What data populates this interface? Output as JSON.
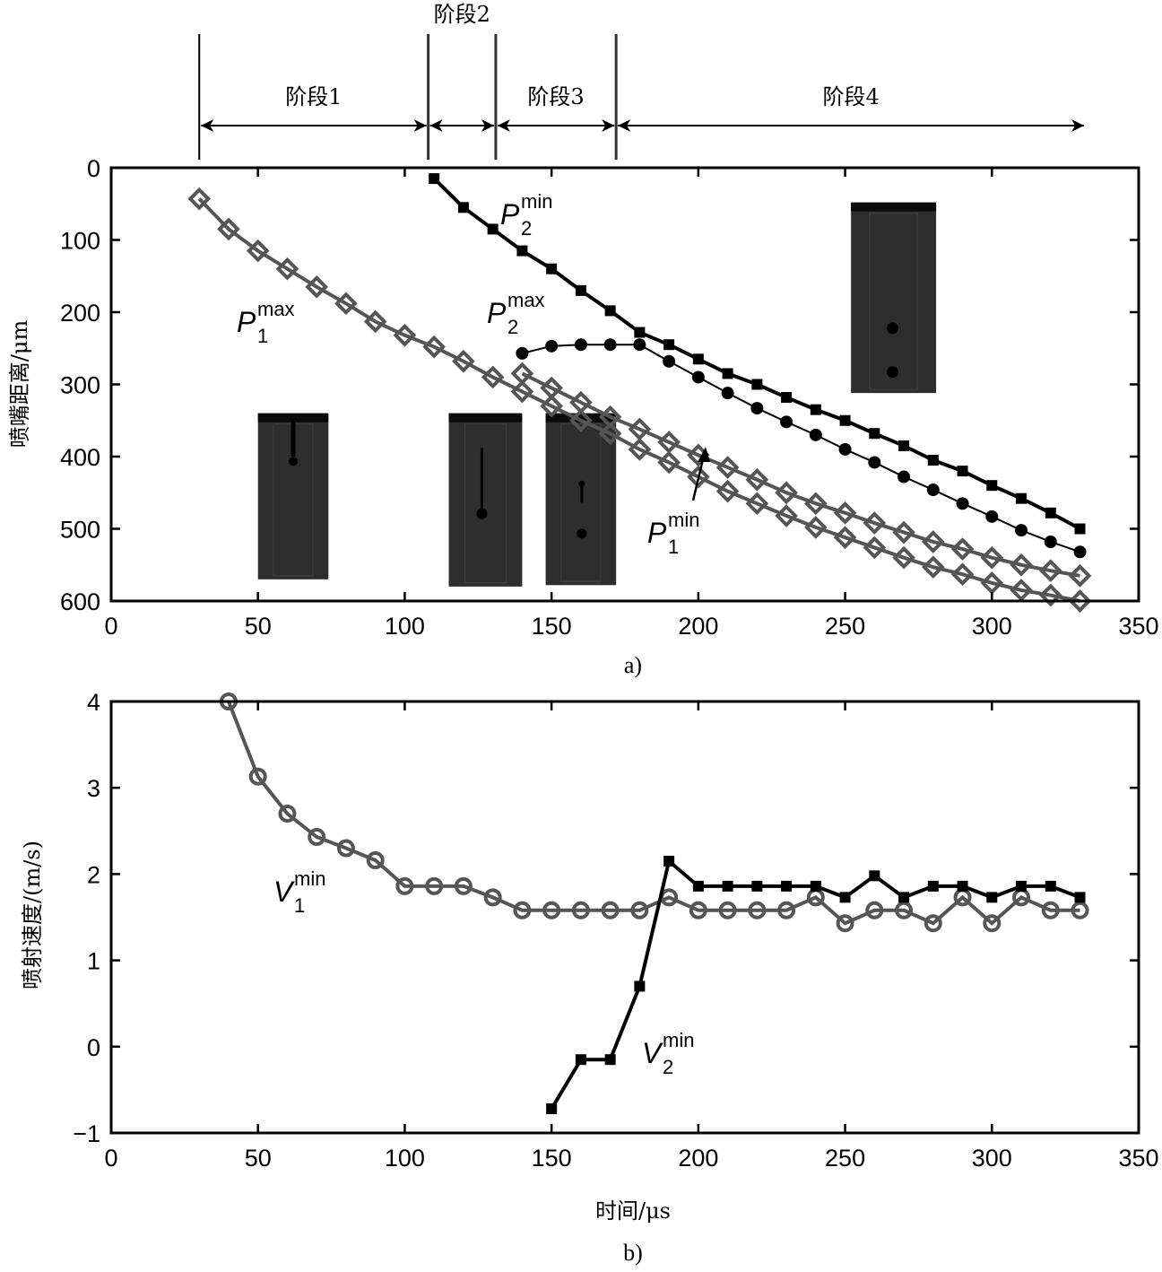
{
  "stage_header": {
    "stages": [
      {
        "label": "阶段1",
        "from": 30,
        "to": 108
      },
      {
        "label": "阶段2",
        "from": 108,
        "to": 131
      },
      {
        "label": "阶段3",
        "from": 131,
        "to": 172
      },
      {
        "label": "阶段4",
        "from": 172,
        "to": 332
      }
    ]
  },
  "chart_data": [
    {
      "id": "a",
      "type": "line",
      "caption": "a)",
      "title": "",
      "xlabel": "",
      "ylabel": "喷嘴距离/μm",
      "xlim": [
        0,
        350
      ],
      "ylim": [
        0,
        600
      ],
      "y_inverted": true,
      "x_ticks": [
        0,
        50,
        100,
        150,
        200,
        250,
        300,
        350
      ],
      "y_ticks": [
        0,
        100,
        200,
        300,
        400,
        500,
        600
      ],
      "grid": false,
      "series": [
        {
          "name": "P1max",
          "label_main": "P",
          "label_sub": "1",
          "label_sup": "max",
          "marker": "diamond-open",
          "color": "#555555",
          "x": [
            30,
            40,
            50,
            60,
            70,
            80,
            90,
            100,
            110,
            120,
            130,
            140,
            150,
            160,
            170,
            180,
            190,
            200,
            210,
            220,
            230,
            240,
            250,
            260,
            270,
            280,
            290,
            300,
            310,
            320,
            330
          ],
          "y": [
            43,
            85,
            115,
            140,
            165,
            188,
            213,
            232,
            248,
            268,
            290,
            310,
            330,
            350,
            368,
            390,
            408,
            428,
            448,
            465,
            482,
            498,
            512,
            526,
            540,
            553,
            563,
            575,
            585,
            592,
            600
          ]
        },
        {
          "name": "P1min",
          "label_main": "P",
          "label_sub": "1",
          "label_sup": "min",
          "marker": "diamond-open",
          "color": "#555555",
          "x": [
            140,
            150,
            160,
            170,
            180,
            190,
            200,
            210,
            220,
            230,
            240,
            250,
            260,
            270,
            280,
            290,
            300,
            310,
            320,
            330
          ],
          "y": [
            285,
            305,
            325,
            345,
            362,
            380,
            398,
            415,
            432,
            450,
            465,
            478,
            492,
            505,
            518,
            528,
            540,
            550,
            558,
            565
          ]
        },
        {
          "name": "P2min",
          "label_main": "P",
          "label_sub": "2",
          "label_sup": "min",
          "marker": "square-filled",
          "color": "#000000",
          "x": [
            110,
            120,
            130,
            140,
            150,
            160,
            170,
            180,
            190,
            200,
            210,
            220,
            230,
            240,
            250,
            260,
            270,
            280,
            290,
            300,
            310,
            320,
            330
          ],
          "y": [
            15,
            55,
            85,
            115,
            140,
            170,
            198,
            228,
            245,
            265,
            285,
            300,
            318,
            335,
            350,
            368,
            385,
            405,
            420,
            440,
            458,
            478,
            500
          ]
        },
        {
          "name": "P2max",
          "label_main": "P",
          "label_sub": "2",
          "label_sup": "max",
          "marker": "circle-filled",
          "color": "#000000",
          "x": [
            140,
            150,
            160,
            170,
            180,
            190,
            200,
            210,
            220,
            230,
            240,
            250,
            260,
            270,
            280,
            290,
            300,
            310,
            320,
            330
          ],
          "y": [
            257,
            247,
            245,
            245,
            245,
            268,
            290,
            312,
            333,
            352,
            370,
            390,
            408,
            428,
            446,
            465,
            483,
            502,
            518,
            532
          ]
        }
      ],
      "insets": [
        {
          "name": "droplet-image-stage1",
          "x_range": [
            50,
            74
          ],
          "y_range": [
            340,
            570
          ],
          "features": "thread-with-head"
        },
        {
          "name": "droplet-image-stage2",
          "x_range": [
            115,
            140
          ],
          "y_range": [
            340,
            580
          ],
          "features": "detached-thread"
        },
        {
          "name": "droplet-image-stage3",
          "x_range": [
            148,
            172
          ],
          "y_range": [
            340,
            578
          ],
          "features": "satellite-breakup"
        },
        {
          "name": "droplet-image-stage4",
          "x_range": [
            252,
            281
          ],
          "y_range": [
            48,
            312
          ],
          "features": "two-droplets"
        }
      ]
    },
    {
      "id": "b",
      "type": "line",
      "caption": "b)",
      "title": "",
      "xlabel": "时间/μs",
      "ylabel": "喷射速度/(m/s)",
      "xlim": [
        0,
        350
      ],
      "ylim": [
        -1,
        4
      ],
      "x_ticks": [
        0,
        50,
        100,
        150,
        200,
        250,
        300,
        350
      ],
      "y_ticks": [
        -1,
        0,
        1,
        2,
        3,
        4
      ],
      "y_tick_labels": [
        "−1",
        "0",
        "1",
        "2",
        "3",
        "4"
      ],
      "grid": false,
      "series": [
        {
          "name": "V1min",
          "label_main": "V",
          "label_sub": "1",
          "label_sup": "min",
          "marker": "circle-open",
          "color": "#555555",
          "x": [
            40,
            50,
            60,
            70,
            80,
            90,
            100,
            110,
            120,
            130,
            140,
            150,
            160,
            170,
            180,
            190,
            200,
            210,
            220,
            230,
            240,
            250,
            260,
            270,
            280,
            290,
            300,
            310,
            320,
            330
          ],
          "y": [
            4.0,
            3.13,
            2.7,
            2.43,
            2.3,
            2.16,
            1.86,
            1.86,
            1.86,
            1.73,
            1.58,
            1.58,
            1.58,
            1.58,
            1.58,
            1.73,
            1.58,
            1.58,
            1.58,
            1.58,
            1.73,
            1.43,
            1.58,
            1.58,
            1.43,
            1.73,
            1.43,
            1.73,
            1.58,
            1.58
          ]
        },
        {
          "name": "V2min",
          "label_main": "V",
          "label_sub": "2",
          "label_sup": "min",
          "marker": "square-filled",
          "color": "#000000",
          "x": [
            150,
            160,
            170,
            180,
            190,
            200,
            210,
            220,
            230,
            240,
            250,
            260,
            270,
            280,
            290,
            300,
            310,
            320,
            330
          ],
          "y": [
            -0.72,
            -0.15,
            -0.15,
            0.7,
            2.15,
            1.86,
            1.86,
            1.86,
            1.86,
            1.86,
            1.73,
            1.98,
            1.73,
            1.86,
            1.86,
            1.73,
            1.86,
            1.86,
            1.73
          ]
        }
      ]
    }
  ]
}
